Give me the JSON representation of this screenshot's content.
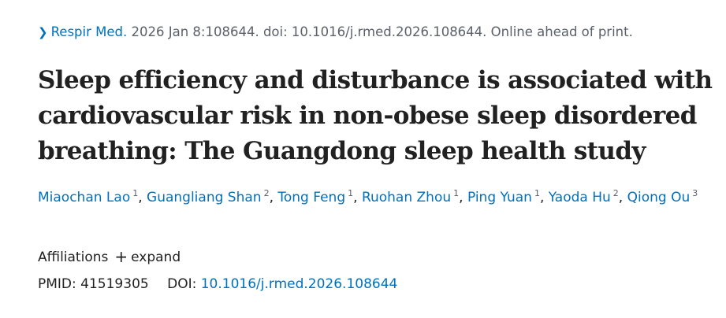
{
  "citation": {
    "journal": "Respir Med.",
    "details": " 2026 Jan 8:108644. doi: 10.1016/j.rmed.2026.108644. Online ahead of print."
  },
  "title": "Sleep efficiency and disturbance is associated with cardiovascular risk in non-obese sleep disordered breathing: The Guangdong sleep health study",
  "authors": [
    {
      "name": "Miaochan Lao",
      "sup": "1"
    },
    {
      "name": "Guangliang Shan",
      "sup": "2"
    },
    {
      "name": "Tong Feng",
      "sup": "1"
    },
    {
      "name": "Ruohan Zhou",
      "sup": "1"
    },
    {
      "name": "Ping Yuan",
      "sup": "1"
    },
    {
      "name": "Yaoda Hu",
      "sup": "2"
    },
    {
      "name": "Qiong Ou",
      "sup": "3"
    }
  ],
  "affiliations": {
    "label": "Affiliations",
    "expand_icon": "+",
    "expand_label": "expand"
  },
  "ids": {
    "pmid_label": "PMID:",
    "pmid": "41519305",
    "doi_label": "DOI:",
    "doi": "10.1016/j.rmed.2026.108644"
  }
}
